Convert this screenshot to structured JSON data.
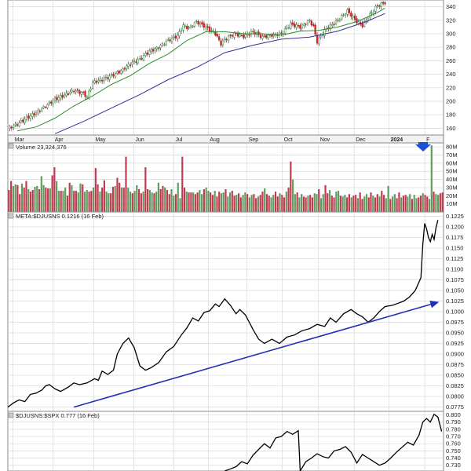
{
  "chart_data": [
    {
      "panel": "price",
      "type": "candlestick",
      "title": "",
      "y_ticks": [
        160,
        180,
        200,
        220,
        240,
        260,
        280,
        300,
        320,
        340
      ],
      "ylim": [
        150,
        350
      ],
      "x_month_labels": [
        "Mar",
        "Apr",
        "May",
        "Jun",
        "Jul",
        "Aug",
        "Sep",
        "Oct",
        "Nov",
        "Dec",
        "2024",
        "F"
      ],
      "close_path": [
        [
          0,
          160
        ],
        [
          5,
          166
        ],
        [
          10,
          175
        ],
        [
          15,
          183
        ],
        [
          20,
          193
        ],
        [
          25,
          203
        ],
        [
          30,
          209
        ],
        [
          35,
          216
        ],
        [
          40,
          212
        ],
        [
          42,
          206
        ],
        [
          45,
          228
        ],
        [
          50,
          232
        ],
        [
          55,
          238
        ],
        [
          60,
          245
        ],
        [
          65,
          256
        ],
        [
          70,
          262
        ],
        [
          75,
          274
        ],
        [
          80,
          280
        ],
        [
          85,
          290
        ],
        [
          90,
          297
        ],
        [
          93,
          312
        ],
        [
          96,
          308
        ],
        [
          100,
          318
        ],
        [
          105,
          310
        ],
        [
          110,
          300
        ],
        [
          113,
          285
        ],
        [
          115,
          292
        ],
        [
          120,
          300
        ],
        [
          125,
          296
        ],
        [
          130,
          303
        ],
        [
          135,
          295
        ],
        [
          140,
          298
        ],
        [
          145,
          300
        ],
        [
          150,
          314
        ],
        [
          155,
          310
        ],
        [
          160,
          320
        ],
        [
          162,
          310
        ],
        [
          164,
          288
        ],
        [
          168,
          305
        ],
        [
          175,
          320
        ],
        [
          180,
          334
        ],
        [
          185,
          318
        ],
        [
          188,
          312
        ],
        [
          192,
          328
        ],
        [
          196,
          342
        ],
        [
          200,
          346
        ]
      ],
      "series": [
        {
          "name": "",
          "kind": "sma_short",
          "color": "#2e8b2e",
          "path": [
            [
              5,
              156
            ],
            [
              15,
              162
            ],
            [
              25,
              175
            ],
            [
              35,
              193
            ],
            [
              45,
              208
            ],
            [
              55,
              225
            ],
            [
              65,
              238
            ],
            [
              75,
              256
            ],
            [
              85,
              270
            ],
            [
              95,
              290
            ],
            [
              105,
              303
            ],
            [
              115,
              303
            ],
            [
              125,
              300
            ],
            [
              135,
              300
            ],
            [
              145,
              298
            ],
            [
              155,
              304
            ],
            [
              165,
              305
            ],
            [
              175,
              310
            ],
            [
              185,
              318
            ],
            [
              195,
              330
            ],
            [
              200,
              338
            ]
          ]
        },
        {
          "name": "",
          "kind": "sma_long",
          "color": "#333399",
          "path": [
            [
              25,
              152
            ],
            [
              40,
              170
            ],
            [
              55,
              190
            ],
            [
              70,
              210
            ],
            [
              85,
              232
            ],
            [
              100,
              250
            ],
            [
              115,
              272
            ],
            [
              130,
              283
            ],
            [
              145,
              292
            ],
            [
              160,
              295
            ],
            [
              175,
              304
            ],
            [
              190,
              318
            ],
            [
              200,
              330
            ]
          ]
        }
      ],
      "candle_color_up": "#2e8b2e",
      "candle_color_down": "#cc2222"
    },
    {
      "panel": "volume",
      "type": "bar",
      "label": "Volume 23,324,376",
      "y_ticks_labels": [
        "10M",
        "20M",
        "30M",
        "40M",
        "50M",
        "60M",
        "70M",
        "80M"
      ],
      "ylim": [
        0,
        85
      ],
      "volume_values_m": [
        27,
        38,
        32,
        34,
        33,
        22,
        35,
        30,
        38,
        28,
        25,
        27,
        31,
        32,
        28,
        44,
        33,
        30,
        29,
        29,
        45,
        55,
        38,
        26,
        26,
        26,
        30,
        20,
        36,
        33,
        26,
        26,
        24,
        35,
        34,
        25,
        27,
        25,
        26,
        30,
        54,
        34,
        25,
        30,
        39,
        25,
        23,
        23,
        31,
        32,
        42,
        36,
        30,
        30,
        68,
        30,
        25,
        23,
        26,
        33,
        28,
        23,
        25,
        55,
        28,
        27,
        24,
        23,
        25,
        36,
        28,
        32,
        30,
        27,
        22,
        28,
        20,
        22,
        36,
        17,
        68,
        30,
        25,
        24,
        24,
        24,
        22,
        24,
        27,
        22,
        28,
        30,
        26,
        24,
        21,
        26,
        19,
        25,
        23,
        24,
        28,
        19,
        24,
        26,
        20,
        21,
        23,
        18,
        21,
        24,
        22,
        18,
        21,
        22,
        17,
        19,
        21,
        25,
        29,
        22,
        20,
        18,
        21,
        25,
        19,
        23,
        21,
        18,
        25,
        30,
        62,
        40,
        22,
        24,
        18,
        22,
        19,
        18,
        20,
        21,
        18,
        23,
        22,
        28,
        17,
        22,
        33,
        23,
        27,
        20,
        18,
        25,
        26,
        20,
        19,
        21,
        18,
        22,
        18,
        20,
        21,
        17,
        24,
        16,
        19,
        22,
        18,
        24,
        20,
        18,
        22,
        19,
        26,
        21,
        17,
        32,
        16,
        19,
        22,
        17,
        24,
        18,
        20,
        21,
        19,
        22,
        16,
        21,
        17,
        18,
        20,
        23,
        21,
        19,
        16,
        82,
        25,
        22,
        21,
        23,
        24
      ],
      "bar_colors": {
        "up": "#5f9b5f",
        "down": "#c2384f"
      },
      "signal_marker_color": "#1a4fd6"
    },
    {
      "panel": "ratio-meta",
      "type": "line",
      "label": "META:$DJUSNS 0.1216 (16 Feb)",
      "y_ticks": [
        0.0775,
        0.08,
        0.0825,
        0.085,
        0.0875,
        0.09,
        0.0925,
        0.095,
        0.0975,
        0.1,
        0.1025,
        0.105,
        0.1075,
        0.11,
        0.1125,
        0.115,
        0.1175,
        0.12,
        0.1225
      ],
      "ylim": [
        0.0765,
        0.1235
      ],
      "path": [
        [
          0,
          0.0775
        ],
        [
          3,
          0.0785
        ],
        [
          6,
          0.0792
        ],
        [
          9,
          0.0788
        ],
        [
          12,
          0.0805
        ],
        [
          15,
          0.0808
        ],
        [
          18,
          0.0815
        ],
        [
          20,
          0.0825
        ],
        [
          22,
          0.0828
        ],
        [
          25,
          0.0818
        ],
        [
          28,
          0.0812
        ],
        [
          32,
          0.0822
        ],
        [
          35,
          0.0832
        ],
        [
          38,
          0.0828
        ],
        [
          42,
          0.0832
        ],
        [
          46,
          0.0842
        ],
        [
          48,
          0.0838
        ],
        [
          50,
          0.086
        ],
        [
          53,
          0.0852
        ],
        [
          56,
          0.0862
        ],
        [
          58,
          0.09
        ],
        [
          61,
          0.0925
        ],
        [
          64,
          0.0938
        ],
        [
          67,
          0.0915
        ],
        [
          70,
          0.0872
        ],
        [
          73,
          0.0862
        ],
        [
          76,
          0.0868
        ],
        [
          80,
          0.088
        ],
        [
          84,
          0.0905
        ],
        [
          88,
          0.0918
        ],
        [
          92,
          0.0945
        ],
        [
          95,
          0.0962
        ],
        [
          98,
          0.0985
        ],
        [
          101,
          0.0978
        ],
        [
          104,
          0.0998
        ],
        [
          107,
          0.1002
        ],
        [
          110,
          0.1018
        ],
        [
          112,
          0.1012
        ],
        [
          115,
          0.103
        ],
        [
          118,
          0.1015
        ],
        [
          121,
          0.0995
        ],
        [
          123,
          0.1005
        ],
        [
          126,
          0.0992
        ],
        [
          130,
          0.0958
        ],
        [
          133,
          0.0935
        ],
        [
          136,
          0.0925
        ],
        [
          140,
          0.0935
        ],
        [
          144,
          0.0925
        ],
        [
          148,
          0.094
        ],
        [
          152,
          0.0945
        ],
        [
          156,
          0.0955
        ],
        [
          160,
          0.096
        ],
        [
          164,
          0.097
        ],
        [
          168,
          0.0965
        ],
        [
          171,
          0.0985
        ],
        [
          174,
          0.0975
        ],
        [
          178,
          0.0995
        ],
        [
          182,
          0.1005
        ],
        [
          185,
          0.0995
        ],
        [
          188,
          0.0988
        ],
        [
          191,
          0.0975
        ],
        [
          194,
          0.0985
        ],
        [
          197,
          0.1
        ],
        [
          200,
          0.1012
        ],
        [
          204,
          0.1015
        ],
        [
          207,
          0.102
        ],
        [
          210,
          0.1025
        ],
        [
          213,
          0.1035
        ],
        [
          216,
          0.105
        ],
        [
          219,
          0.108
        ],
        [
          220,
          0.1158
        ],
        [
          221,
          0.1208
        ],
        [
          222,
          0.1195
        ],
        [
          223,
          0.1175
        ],
        [
          224,
          0.1165
        ],
        [
          225,
          0.1182
        ],
        [
          226,
          0.117
        ],
        [
          227,
          0.1198
        ],
        [
          228,
          0.1216
        ]
      ],
      "trendline": {
        "color": "#1f2fb5",
        "from": [
          35,
          0.0775
        ],
        "to": [
          228,
          0.1022
        ]
      }
    },
    {
      "panel": "ratio-djusns",
      "type": "line",
      "label": "$DJUSNS:$SPX 0.777 (16 Feb)",
      "y_ticks": [
        0.73,
        0.74,
        0.75,
        0.76,
        0.77,
        0.78,
        0.79,
        0.8
      ],
      "ylim": [
        0.722,
        0.805
      ],
      "path": [
        [
          115,
          0.722
        ],
        [
          118,
          0.725
        ],
        [
          121,
          0.728
        ],
        [
          124,
          0.735
        ],
        [
          127,
          0.732
        ],
        [
          130,
          0.744
        ],
        [
          133,
          0.752
        ],
        [
          136,
          0.76
        ],
        [
          139,
          0.754
        ],
        [
          142,
          0.768
        ],
        [
          145,
          0.77
        ],
        [
          148,
          0.777
        ],
        [
          151,
          0.773
        ],
        [
          154,
          0.778
        ],
        [
          155,
          0.722
        ],
        [
          158,
          0.735
        ],
        [
          161,
          0.74
        ],
        [
          164,
          0.746
        ],
        [
          167,
          0.742
        ],
        [
          170,
          0.74
        ],
        [
          173,
          0.75
        ],
        [
          176,
          0.752
        ],
        [
          179,
          0.756
        ],
        [
          182,
          0.748
        ],
        [
          185,
          0.733
        ],
        [
          188,
          0.745
        ],
        [
          191,
          0.74
        ],
        [
          194,
          0.735
        ],
        [
          197,
          0.73
        ],
        [
          200,
          0.733
        ],
        [
          203,
          0.74
        ],
        [
          206,
          0.748
        ],
        [
          209,
          0.755
        ],
        [
          212,
          0.762
        ],
        [
          215,
          0.758
        ],
        [
          218,
          0.772
        ],
        [
          220,
          0.79
        ],
        [
          222,
          0.795
        ],
        [
          224,
          0.79
        ],
        [
          226,
          0.801
        ],
        [
          228,
          0.797
        ],
        [
          230,
          0.777
        ]
      ]
    }
  ]
}
